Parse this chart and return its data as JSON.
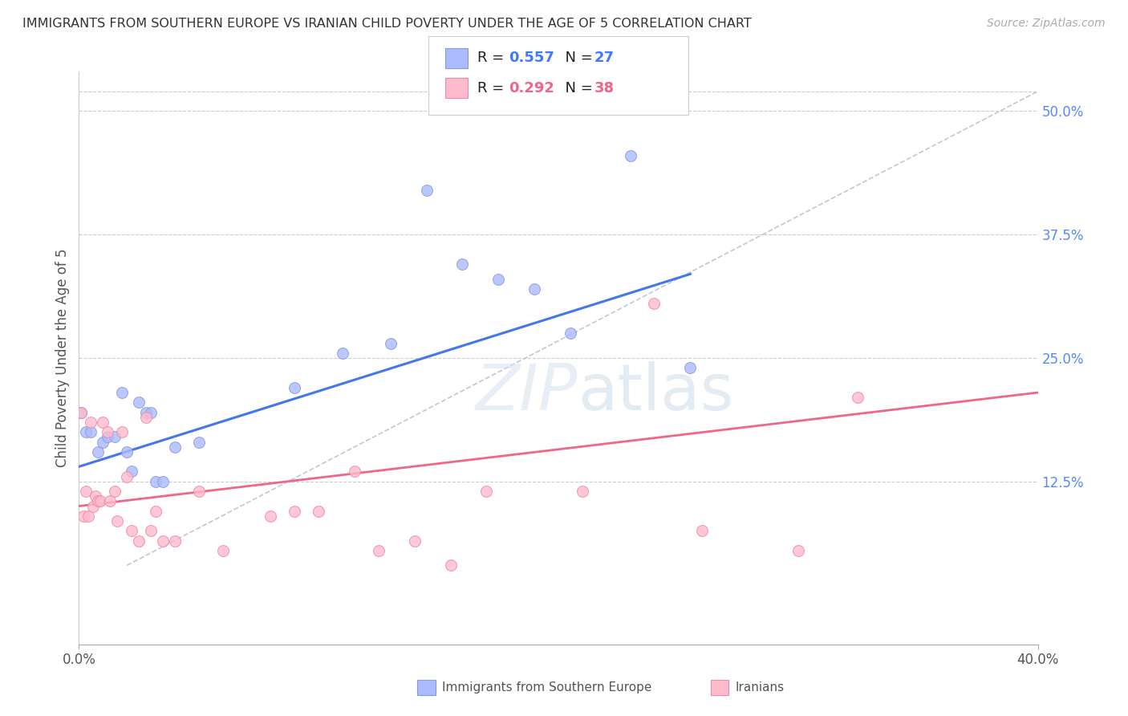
{
  "title": "IMMIGRANTS FROM SOUTHERN EUROPE VS IRANIAN CHILD POVERTY UNDER THE AGE OF 5 CORRELATION CHART",
  "source": "Source: ZipAtlas.com",
  "ylabel": "Child Poverty Under the Age of 5",
  "xmin": 0.0,
  "xmax": 0.4,
  "ymin": -0.04,
  "ymax": 0.54,
  "watermark": "ZIPatlas",
  "blue_scatter_x": [
    0.001,
    0.003,
    0.005,
    0.008,
    0.01,
    0.012,
    0.015,
    0.018,
    0.02,
    0.022,
    0.025,
    0.028,
    0.03,
    0.032,
    0.035,
    0.04,
    0.05,
    0.09,
    0.11,
    0.13,
    0.145,
    0.16,
    0.175,
    0.19,
    0.205,
    0.23,
    0.255
  ],
  "blue_scatter_y": [
    0.195,
    0.175,
    0.175,
    0.155,
    0.165,
    0.17,
    0.17,
    0.215,
    0.155,
    0.135,
    0.205,
    0.195,
    0.195,
    0.125,
    0.125,
    0.16,
    0.165,
    0.22,
    0.255,
    0.265,
    0.42,
    0.345,
    0.33,
    0.32,
    0.275,
    0.455,
    0.24
  ],
  "pink_scatter_x": [
    0.001,
    0.002,
    0.003,
    0.004,
    0.005,
    0.006,
    0.007,
    0.008,
    0.009,
    0.01,
    0.012,
    0.013,
    0.015,
    0.016,
    0.018,
    0.02,
    0.022,
    0.025,
    0.028,
    0.03,
    0.032,
    0.035,
    0.04,
    0.05,
    0.06,
    0.08,
    0.09,
    0.1,
    0.115,
    0.125,
    0.14,
    0.155,
    0.17,
    0.21,
    0.24,
    0.26,
    0.3,
    0.325
  ],
  "pink_scatter_y": [
    0.195,
    0.09,
    0.115,
    0.09,
    0.185,
    0.1,
    0.11,
    0.105,
    0.105,
    0.185,
    0.175,
    0.105,
    0.115,
    0.085,
    0.175,
    0.13,
    0.075,
    0.065,
    0.19,
    0.075,
    0.095,
    0.065,
    0.065,
    0.115,
    0.055,
    0.09,
    0.095,
    0.095,
    0.135,
    0.055,
    0.065,
    0.04,
    0.115,
    0.115,
    0.305,
    0.075,
    0.055,
    0.21
  ],
  "blue_line_x": [
    0.0,
    0.255
  ],
  "blue_line_y": [
    0.14,
    0.335
  ],
  "pink_line_x": [
    0.0,
    0.4
  ],
  "pink_line_y": [
    0.1,
    0.215
  ],
  "grey_dash_line_x": [
    0.02,
    0.4
  ],
  "grey_dash_line_y": [
    0.04,
    0.52
  ],
  "background_color": "#ffffff",
  "scatter_size": 100
}
